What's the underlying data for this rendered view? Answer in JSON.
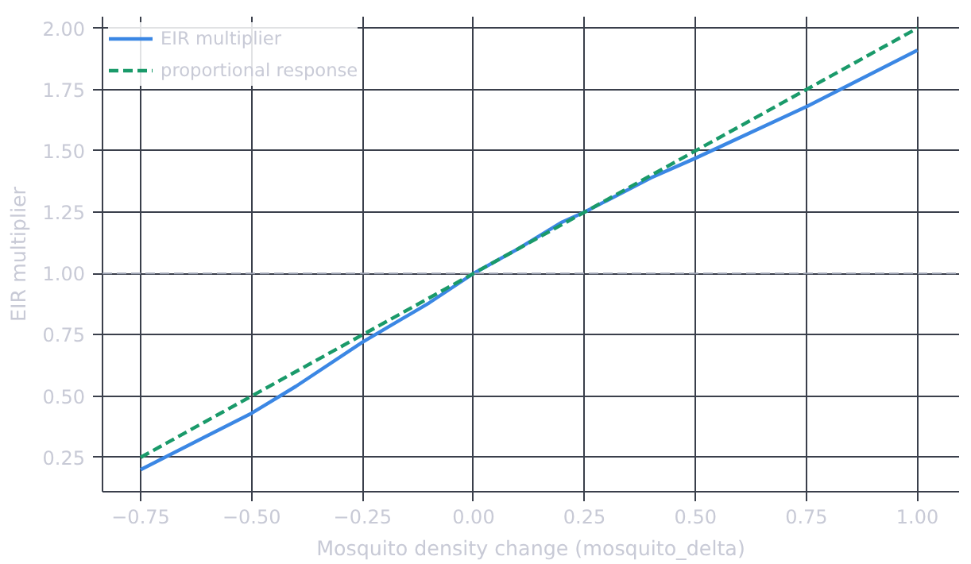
{
  "chart_data": {
    "type": "line",
    "xlabel": "Mosquito density change (mosquito_delta)",
    "ylabel": "EIR multiplier",
    "xlim": [
      -0.836,
      1.094
    ],
    "ylim": [
      0.11,
      2.047
    ],
    "xticks": [
      {
        "value": -0.75,
        "label": "−0.75"
      },
      {
        "value": -0.5,
        "label": "−0.50"
      },
      {
        "value": -0.25,
        "label": "−0.25"
      },
      {
        "value": 0,
        "label": "0.00"
      },
      {
        "value": 0.25,
        "label": "0.25"
      },
      {
        "value": 0.5,
        "label": "0.50"
      },
      {
        "value": 0.75,
        "label": "0.75"
      },
      {
        "value": 1,
        "label": "1.00"
      }
    ],
    "yticks": [
      {
        "value": 0.25,
        "label": "0.25"
      },
      {
        "value": 0.5,
        "label": "0.50"
      },
      {
        "value": 0.75,
        "label": "0.75"
      },
      {
        "value": 1,
        "label": "1.00"
      },
      {
        "value": 1.25,
        "label": "1.25"
      },
      {
        "value": 1.5,
        "label": "1.50"
      },
      {
        "value": 1.75,
        "label": "1.75"
      },
      {
        "value": 2,
        "label": "2.00"
      }
    ],
    "grid": true,
    "legend": "top left",
    "ref_lines": [
      {
        "axis": "y",
        "value": 1,
        "color": "#9aa0b0",
        "line_style": "dashed"
      }
    ],
    "series": [
      {
        "name": "EIR multiplier",
        "color": "#3b87e4",
        "line_style": "solid",
        "x": [
          -0.75,
          -0.5,
          -0.4,
          -0.25,
          -0.1,
          0,
          0.1,
          0.2,
          0.25,
          0.4,
          0.5,
          0.75,
          1.0
        ],
        "values": [
          0.2,
          0.43,
          0.54,
          0.72,
          0.88,
          1.0,
          1.1,
          1.21,
          1.25,
          1.39,
          1.47,
          1.68,
          1.91
        ]
      },
      {
        "name": "proportional response",
        "color": "#1a9a6a",
        "line_style": "dashed",
        "x": [
          -0.75,
          -0.5,
          -0.25,
          0,
          0.25,
          0.5,
          0.75,
          1.0
        ],
        "values": [
          0.25,
          0.5,
          0.75,
          1.0,
          1.25,
          1.5,
          1.75,
          2.0
        ]
      }
    ]
  }
}
